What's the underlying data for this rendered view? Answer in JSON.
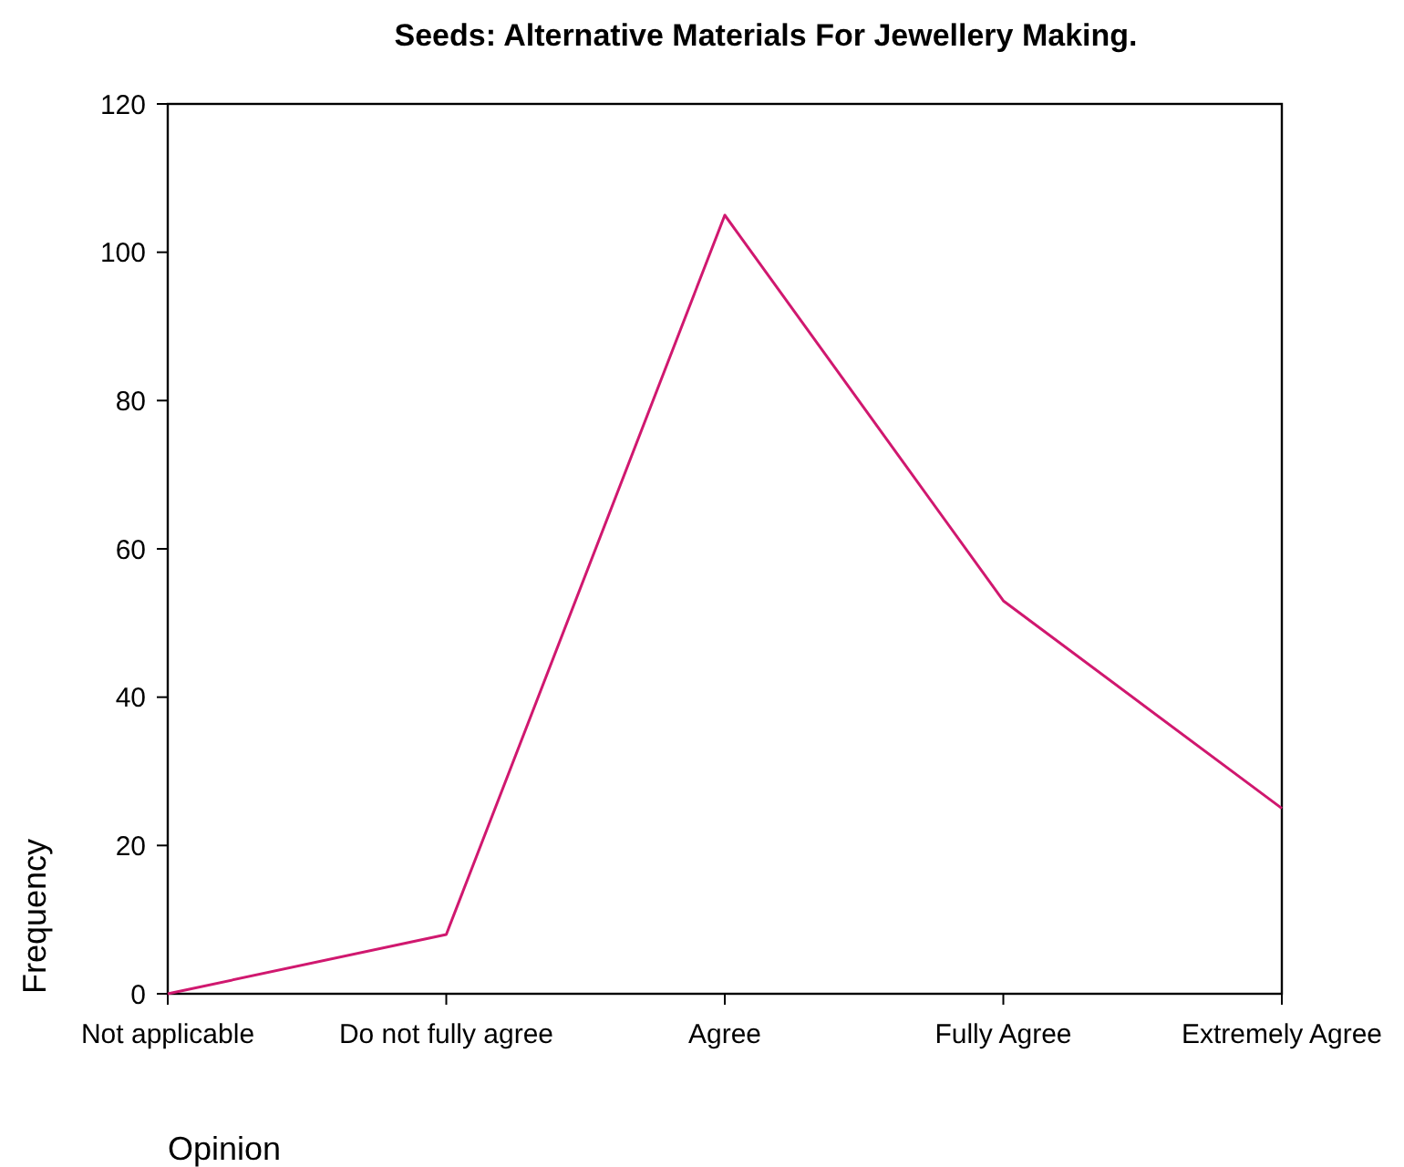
{
  "chart_data": {
    "type": "line",
    "title": "Seeds: Alternative Materials For Jewellery Making.",
    "xlabel": "Opinion",
    "ylabel": "Frequency",
    "categories": [
      "Not applicable",
      "Do not fully agree",
      "Agree",
      "Fully Agree",
      "Extremely Agree"
    ],
    "series": [
      {
        "color": "#d0186f",
        "values": [
          0,
          8,
          105,
          53,
          25
        ]
      }
    ],
    "ylim": [
      0,
      120
    ],
    "yticks": [
      0,
      20,
      40,
      60,
      80,
      100,
      120
    ],
    "grid": false,
    "marker": "none",
    "line_style": "solid"
  }
}
